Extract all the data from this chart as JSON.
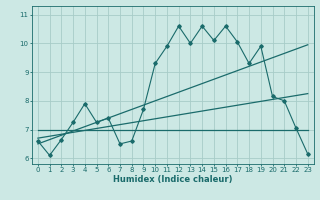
{
  "title": "",
  "xlabel": "Humidex (Indice chaleur)",
  "ylabel": "",
  "xlim": [
    -0.5,
    23.5
  ],
  "ylim": [
    5.8,
    11.3
  ],
  "yticks": [
    6,
    7,
    8,
    9,
    10,
    11
  ],
  "xticks": [
    0,
    1,
    2,
    3,
    4,
    5,
    6,
    7,
    8,
    9,
    10,
    11,
    12,
    13,
    14,
    15,
    16,
    17,
    18,
    19,
    20,
    21,
    22,
    23
  ],
  "bg_color": "#cce8e4",
  "line_color": "#1a6b6b",
  "grid_color": "#a8ccc8",
  "zigzag_x": [
    0,
    1,
    2,
    3,
    4,
    5,
    6,
    7,
    8,
    9,
    10,
    11,
    12,
    13,
    14,
    15,
    16,
    17,
    18,
    19,
    20,
    21,
    22,
    23
  ],
  "zigzag_y": [
    6.6,
    6.1,
    6.65,
    7.25,
    7.9,
    7.25,
    7.4,
    6.5,
    6.6,
    7.7,
    9.3,
    9.9,
    10.6,
    10.0,
    10.6,
    10.1,
    10.6,
    10.05,
    9.3,
    9.9,
    8.15,
    8.0,
    7.05,
    6.15
  ],
  "trend1_x": [
    0,
    23
  ],
  "trend1_y": [
    7.0,
    7.0
  ],
  "trend2_x": [
    0,
    23
  ],
  "trend2_y": [
    6.7,
    8.25
  ],
  "trend3_x": [
    0,
    23
  ],
  "trend3_y": [
    6.5,
    9.95
  ],
  "figsize": [
    3.2,
    2.0
  ],
  "dpi": 100,
  "tick_fontsize": 5.0,
  "xlabel_fontsize": 6.0
}
